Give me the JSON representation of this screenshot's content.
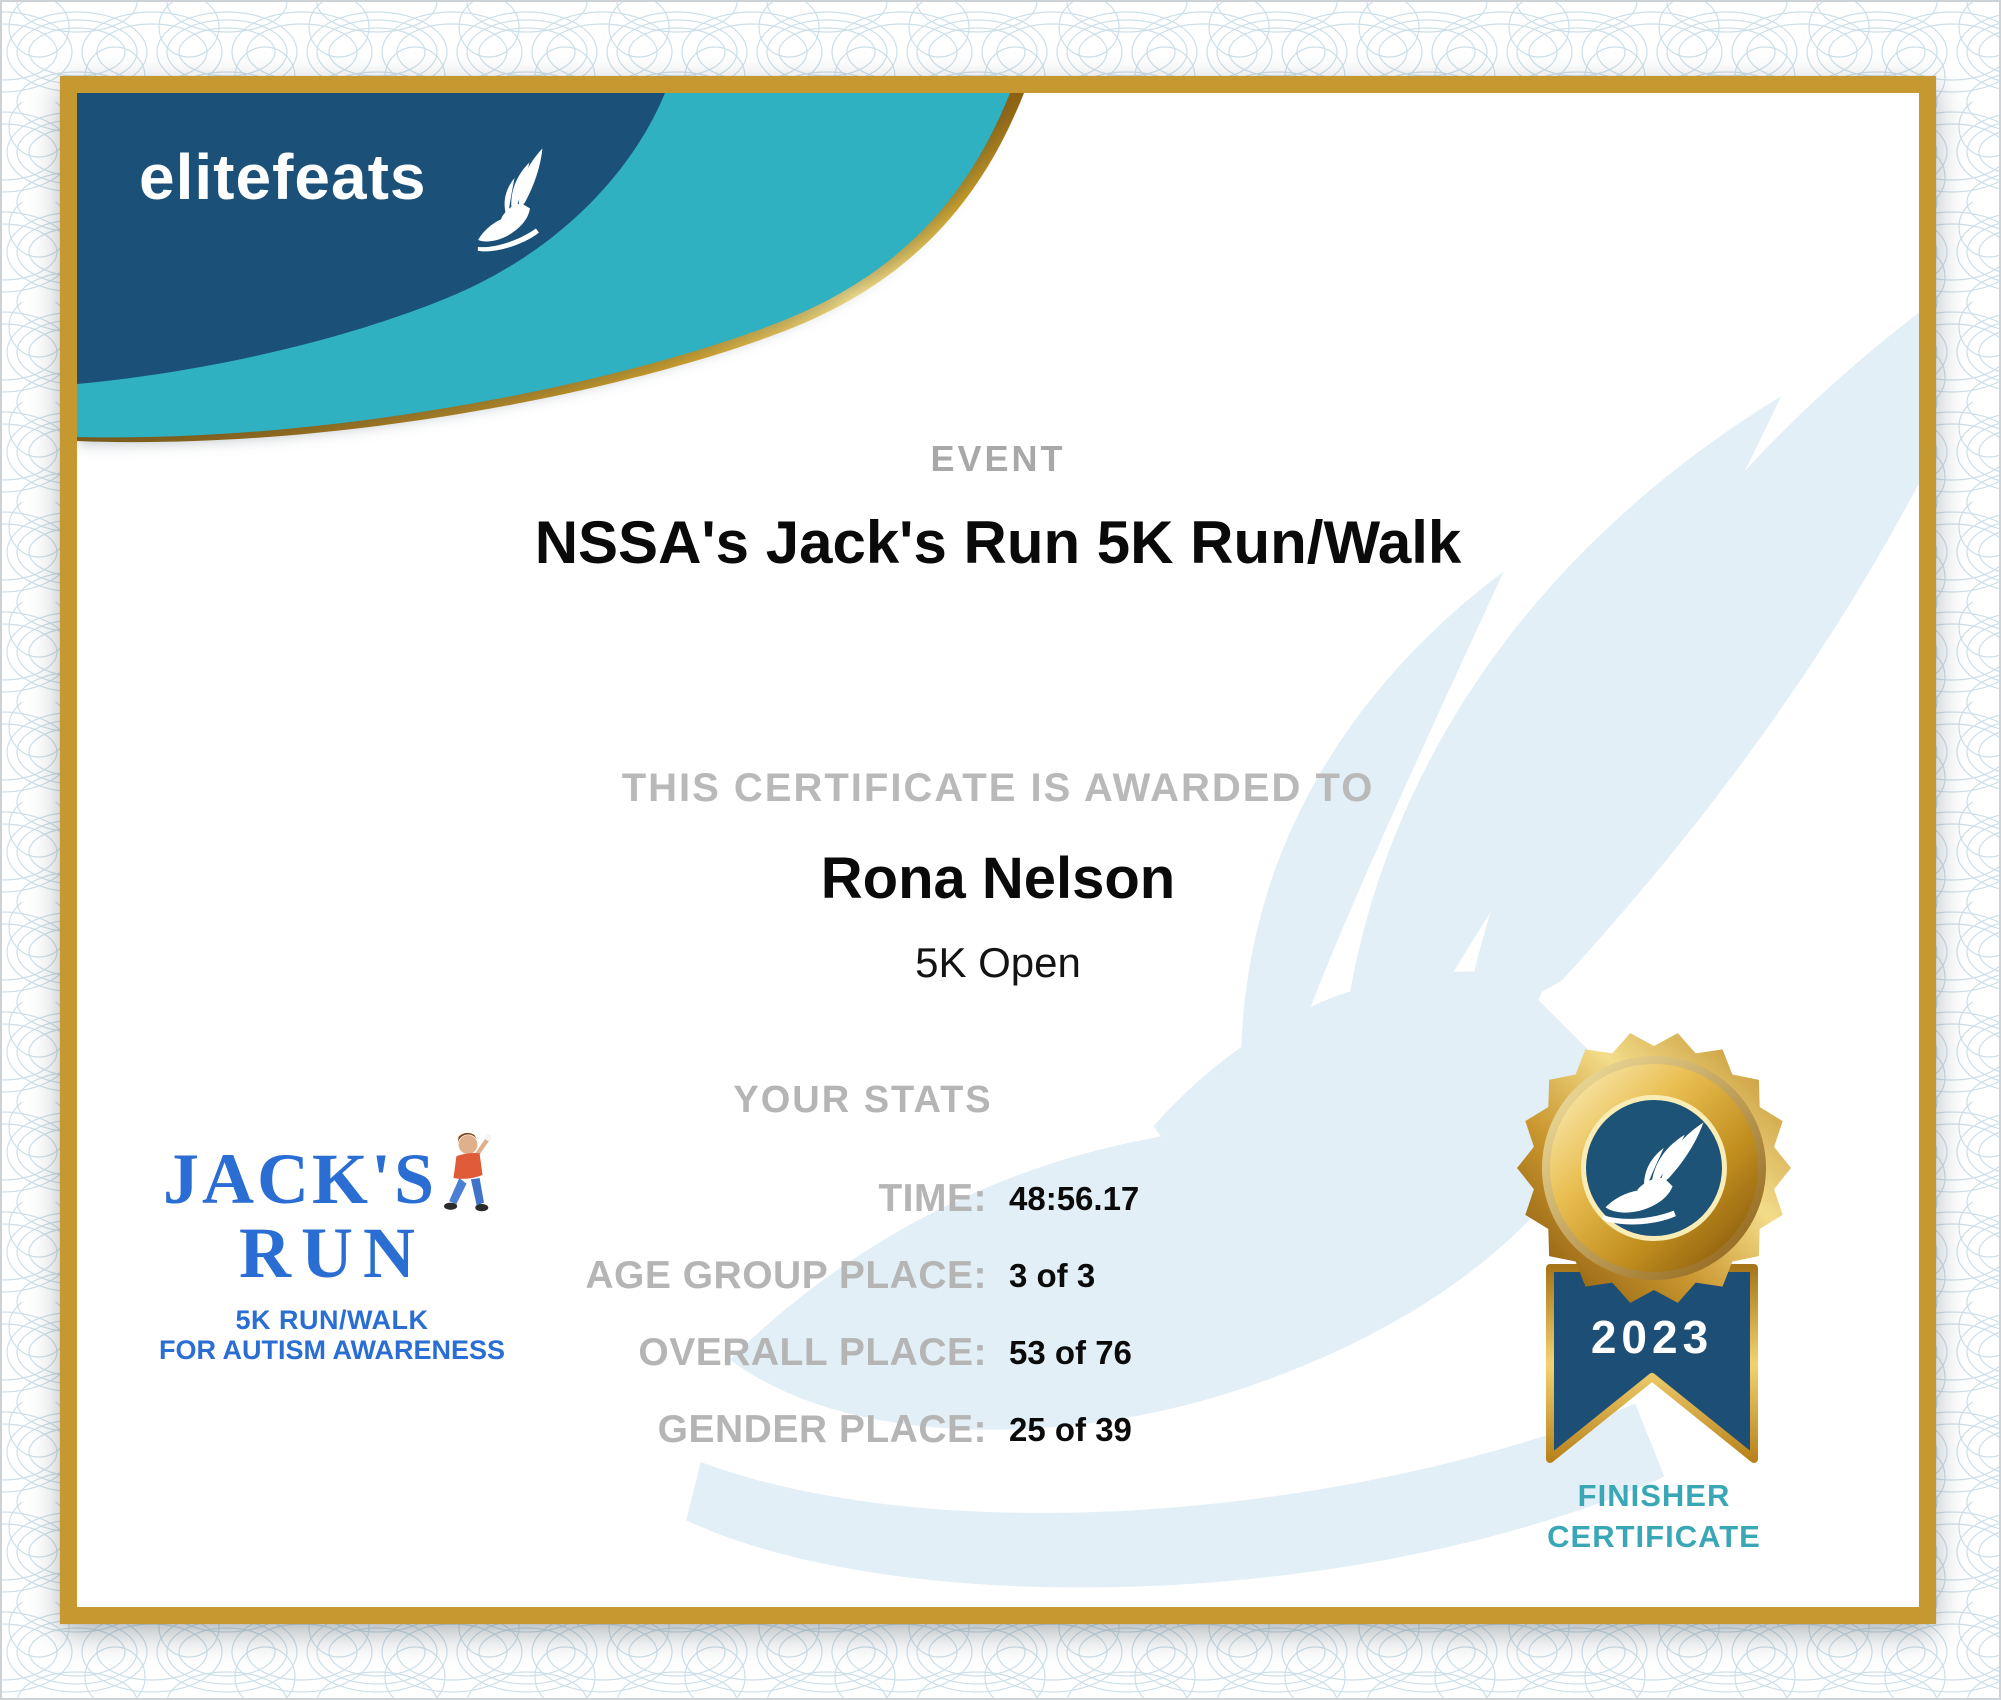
{
  "brand": {
    "logo_text": "elitefeats"
  },
  "header": {
    "event_label": "EVENT",
    "event_title": "NSSA's Jack's Run 5K Run/Walk"
  },
  "award": {
    "label": "THIS CERTIFICATE IS AWARDED TO",
    "recipient_name": "Rona Nelson",
    "division": "5K Open"
  },
  "stats": {
    "heading": "YOUR STATS",
    "rows": [
      {
        "label": "TIME:",
        "value": "48:56.17"
      },
      {
        "label": "AGE GROUP PLACE:",
        "value": "3 of 3"
      },
      {
        "label": "OVERALL PLACE:",
        "value": "53 of 76"
      },
      {
        "label": "GENDER PLACE:",
        "value": "25 of 39"
      }
    ]
  },
  "event_logo": {
    "title_line1": "JACK'S",
    "title_line2": "RUN",
    "subtitle_line1": "5K RUN/WALK",
    "subtitle_line2": "FOR AUTISM AWARENESS"
  },
  "badge": {
    "year": "2023",
    "caption_line1": "FINISHER",
    "caption_line2": "CERTIFICATE"
  },
  "colors": {
    "navy": "#1b5078",
    "teal": "#2fb1c1",
    "frame_gold": "#c5992f",
    "medal_gold": "#d9a82c",
    "jacks_blue": "#2a6ed3",
    "finisher_teal": "#3aa7b6",
    "label_gray": "#b5b5b5",
    "watermark_blue": "#e2eff6"
  }
}
